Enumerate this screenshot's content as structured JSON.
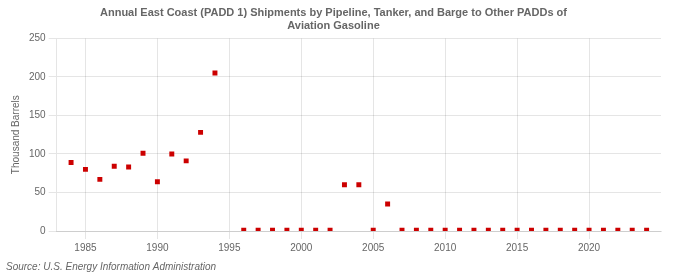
{
  "chart_data": {
    "type": "scatter",
    "title": [
      "Annual East Coast (PADD 1) Shipments by Pipeline, Tanker, and Barge to Other PADDs of",
      "Aviation Gasoline"
    ],
    "ylabel": "Thousand Barrels",
    "source": "Source: U.S. Energy Information Administration",
    "color": "#cc0000",
    "marker": "square",
    "grid": true,
    "xlim": [
      1983,
      2025
    ],
    "ylim": [
      0,
      250
    ],
    "xticks": [
      1985,
      1990,
      1995,
      2000,
      2005,
      2010,
      2015,
      2020
    ],
    "yticks": [
      0,
      50,
      100,
      150,
      200,
      250
    ],
    "x": [
      1984,
      1985,
      1986,
      1987,
      1988,
      1989,
      1990,
      1991,
      1992,
      1993,
      1994,
      1996,
      1997,
      1998,
      1999,
      2000,
      2001,
      2002,
      2003,
      2004,
      2005,
      2006,
      2007,
      2008,
      2009,
      2010,
      2011,
      2012,
      2013,
      2014,
      2015,
      2016,
      2017,
      2018,
      2019,
      2020,
      2021,
      2022,
      2023,
      2024
    ],
    "values": [
      89,
      80,
      67,
      84,
      83,
      101,
      64,
      100,
      91,
      128,
      205,
      1,
      1,
      1,
      1,
      1,
      1,
      1,
      60,
      60,
      1,
      35,
      1,
      1,
      1,
      1,
      1,
      1,
      1,
      1,
      1,
      1,
      1,
      1,
      1,
      1,
      1,
      1,
      1,
      1
    ]
  }
}
